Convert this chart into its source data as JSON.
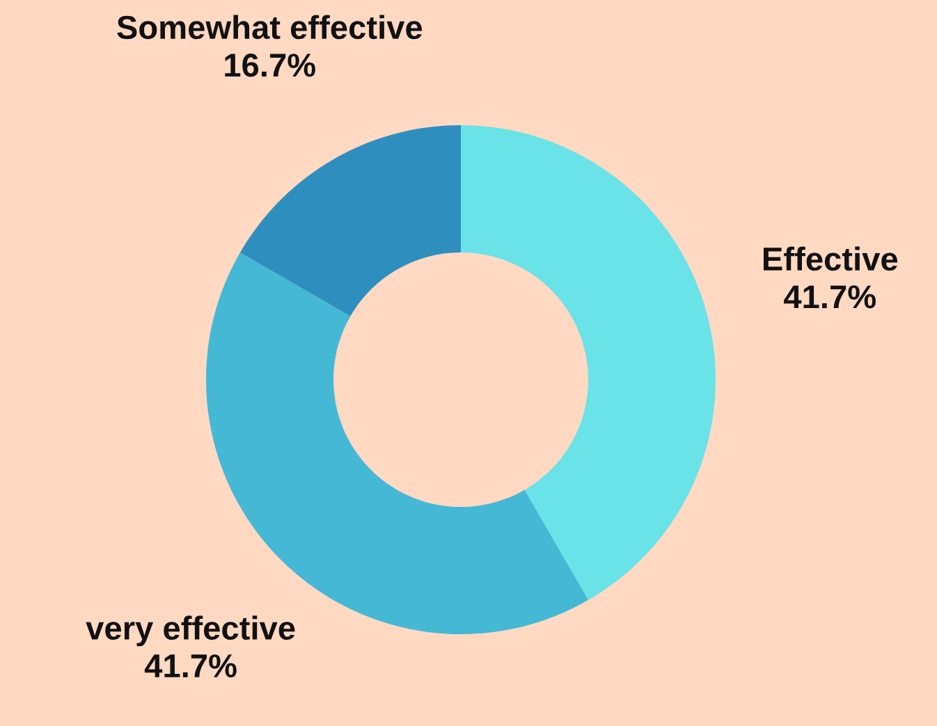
{
  "chart_data": {
    "type": "donut",
    "categories": [
      "Effective",
      "very effective",
      "Somewhat effective"
    ],
    "values": [
      41.7,
      41.7,
      16.7
    ],
    "colors": [
      "#6ae3e8",
      "#45b8d6",
      "#2e8fbf"
    ],
    "value_labels": [
      "41.7%",
      "41.7%",
      "16.7%"
    ],
    "legend": false
  }
}
